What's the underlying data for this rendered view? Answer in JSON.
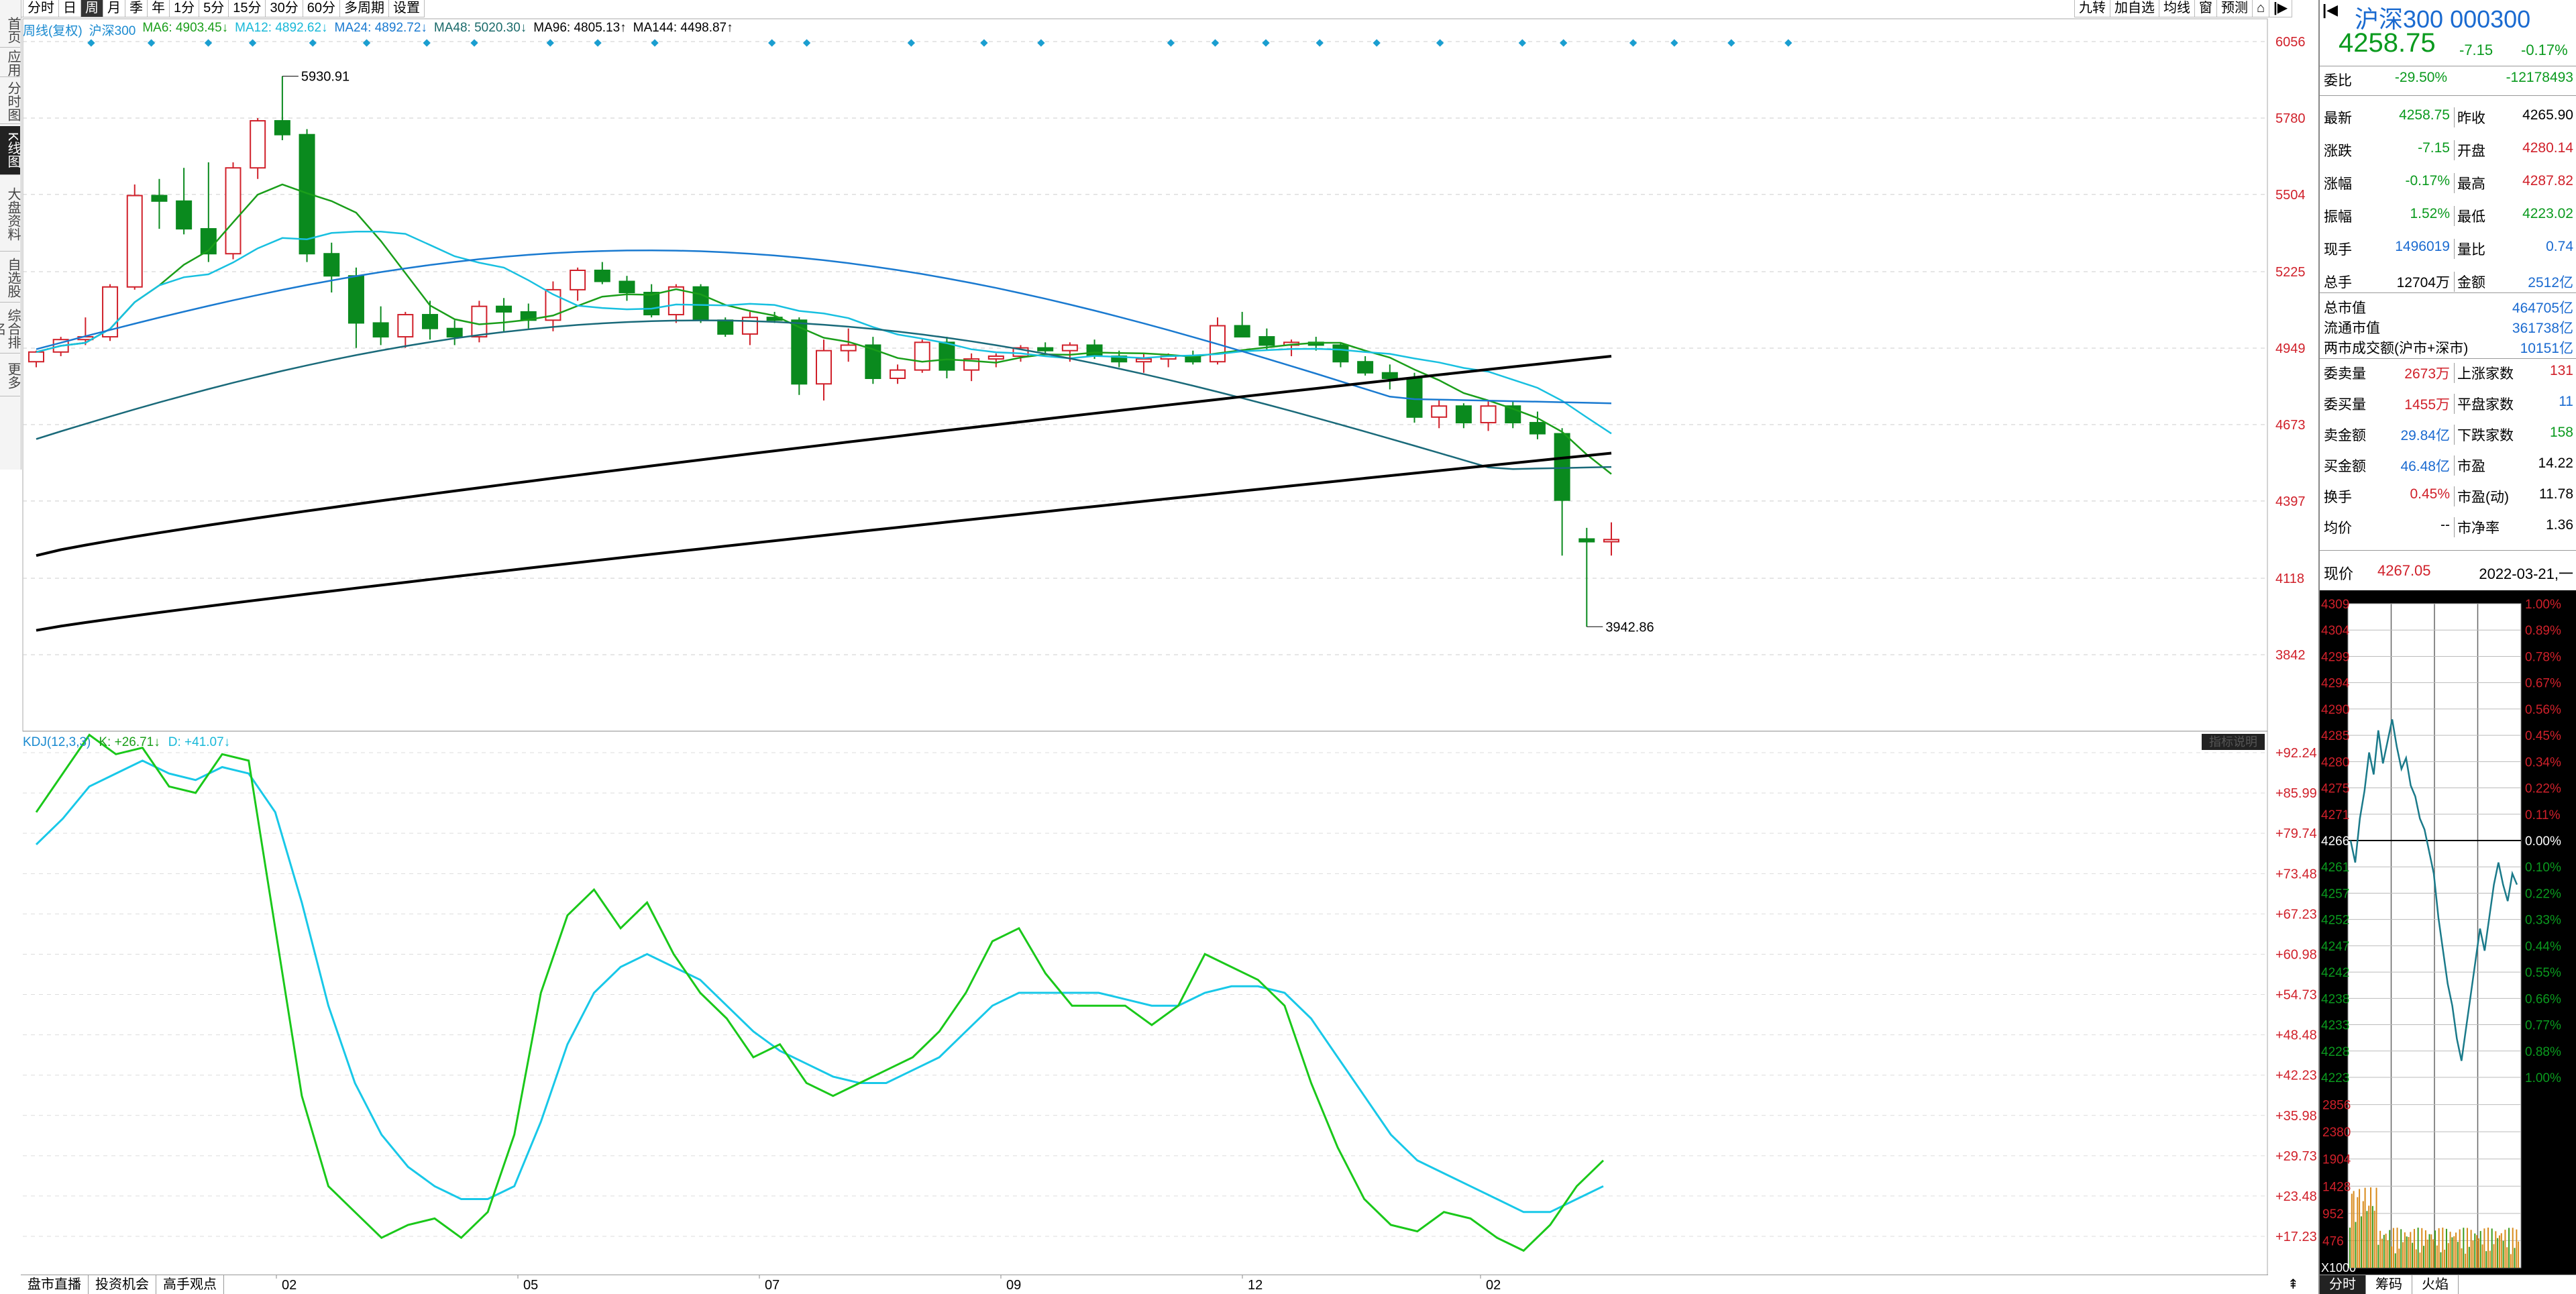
{
  "left_toolbar": {
    "buttons": [
      "分时",
      "日",
      "周",
      "月",
      "季",
      "年",
      "1分",
      "5分",
      "15分",
      "30分",
      "60分",
      "多周期",
      "设置"
    ],
    "active_index": 2
  },
  "right_toolbar": {
    "buttons": [
      "九转",
      "加自选",
      "均线",
      "窗",
      "预测"
    ]
  },
  "left_sidebar": {
    "tabs": [
      "首页",
      "应用",
      "分时图",
      "K线图",
      "大盘资料",
      "自选股",
      "综合排名",
      "更多"
    ],
    "active_index": 3
  },
  "ma_legend": {
    "period_label": "周线(复权)",
    "name": "沪深300",
    "items": [
      {
        "label": "MA6: 4903.45↓",
        "color": "#1a9e1a"
      },
      {
        "label": "MA12: 4892.62↓",
        "color": "#18b8d8"
      },
      {
        "label": "MA24: 4892.72↓",
        "color": "#1a7ad0"
      },
      {
        "label": "MA48: 5020.30↓",
        "color": "#1a6a6a"
      },
      {
        "label": "MA96: 4805.13↑",
        "color": "#000000"
      },
      {
        "label": "MA144: 4498.87↑",
        "color": "#000000"
      }
    ]
  },
  "kline": {
    "price_axis": [
      "6056",
      "5780",
      "5504",
      "5225",
      "4949",
      "4673",
      "4397",
      "4118",
      "3842"
    ],
    "high_label": "5930.91",
    "low_label": "3942.86",
    "x_labels": [
      "02",
      "05",
      "07",
      "09",
      "12",
      "02"
    ],
    "colors": {
      "up": "#d0202a",
      "down": "#0a8a1e",
      "ma6": "#1a9e1a",
      "ma12": "#18c0e0",
      "ma24": "#1a7ad0",
      "ma48": "#1a6a7a",
      "ma96": "#000000",
      "ma144": "#000000"
    }
  },
  "kdj": {
    "label": "KDJ(12,3,3)",
    "k_label": "K: +26.71↓",
    "d_label": "D: +41.07↓",
    "axis": [
      "+92.24",
      "+85.99",
      "+79.74",
      "+73.48",
      "+67.23",
      "+60.98",
      "+54.73",
      "+48.48",
      "+42.23",
      "+35.98",
      "+29.73",
      "+23.48",
      "+17.23"
    ],
    "badge": "指标说明"
  },
  "bottom_tabs": [
    "盘市直播",
    "投资机会",
    "高手观点"
  ],
  "quote": {
    "title": "沪深300 000300",
    "price": "4258.75",
    "change": "-7.15",
    "pct": "-0.17%",
    "weibi_label": "委比",
    "weibi": "-29.50%",
    "weicha": "-12178493",
    "rows": [
      {
        "l1": "最新",
        "v1": "4258.75",
        "c1": "green",
        "l2": "昨收",
        "v2": "4265.90",
        "c2": "black"
      },
      {
        "l1": "涨跌",
        "v1": "-7.15",
        "c1": "green",
        "l2": "开盘",
        "v2": "4280.14",
        "c2": "red"
      },
      {
        "l1": "涨幅",
        "v1": "-0.17%",
        "c1": "green",
        "l2": "最高",
        "v2": "4287.82",
        "c2": "red"
      },
      {
        "l1": "振幅",
        "v1": "1.52%",
        "c1": "green",
        "l2": "最低",
        "v2": "4223.02",
        "c2": "green"
      },
      {
        "l1": "现手",
        "v1": "1496019",
        "c1": "blue",
        "l2": "量比",
        "v2": "0.74",
        "c2": "blue"
      },
      {
        "l1": "总手",
        "v1": "12704万",
        "c1": "black",
        "l2": "金额",
        "v2": "2512亿",
        "c2": "blue"
      }
    ],
    "market": [
      {
        "l": "总市值",
        "v": "464705亿"
      },
      {
        "l": "流通市值",
        "v": "361738亿"
      },
      {
        "l": "两市成交额(沪市+深市)",
        "v": "10151亿"
      }
    ],
    "rows2": [
      {
        "l1": "委卖量",
        "v1": "2673万",
        "c1": "red",
        "l2": "上涨家数",
        "v2": "131",
        "c2": "red"
      },
      {
        "l1": "委买量",
        "v1": "1455万",
        "c1": "red",
        "l2": "平盘家数",
        "v2": "11",
        "c2": "blue"
      },
      {
        "l1": "卖金额",
        "v1": "29.84亿",
        "c1": "blue",
        "l2": "下跌家数",
        "v2": "158",
        "c2": "green"
      },
      {
        "l1": "买金额",
        "v1": "46.48亿",
        "c1": "blue",
        "l2": "市盈",
        "v2": "14.22",
        "c2": "black"
      },
      {
        "l1": "换手",
        "v1": "0.45%",
        "c1": "red",
        "l2": "市盈(动)",
        "v2": "11.78",
        "c2": "black"
      },
      {
        "l1": "均价",
        "v1": "--",
        "c1": "black",
        "l2": "市净率",
        "v2": "1.36",
        "c2": "black"
      }
    ],
    "now_label": "现价",
    "now_value": "4267.05",
    "date": "2022-03-21,一"
  },
  "intraday": {
    "price_axis": [
      "4309",
      "4304",
      "4299",
      "4294",
      "4290",
      "4285",
      "4280",
      "4275",
      "4271",
      "4266",
      "4261",
      "4257",
      "4252",
      "4247",
      "4242",
      "4238",
      "4233",
      "4228",
      "4223"
    ],
    "pct_axis": [
      "1.00%",
      "0.89%",
      "0.78%",
      "0.67%",
      "0.56%",
      "0.45%",
      "0.34%",
      "0.22%",
      "0.11%",
      "0.00%",
      "0.10%",
      "0.22%",
      "0.33%",
      "0.44%",
      "0.55%",
      "0.66%",
      "0.77%",
      "0.88%",
      "1.00%"
    ],
    "vol_axis": [
      "2856",
      "2380",
      "1904",
      "1428",
      "952",
      "476"
    ],
    "vol_unit": "X1000",
    "tabs": [
      "分时",
      "筹码",
      "火焰"
    ]
  }
}
